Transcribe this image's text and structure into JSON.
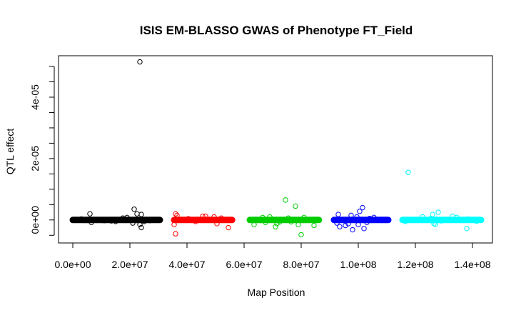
{
  "chart_data": {
    "type": "scatter",
    "title": "ISIS EM-BLASSO GWAS of Phenotype FT_Field",
    "xlabel": "Map Position",
    "ylabel": "QTL effect",
    "xlim": [
      -5000000,
      147000000
    ],
    "ylim": [
      -7.5e-06,
      5.35e-05
    ],
    "x_ticks": [
      0,
      20000000,
      40000000,
      60000000,
      80000000,
      100000000,
      120000000,
      140000000
    ],
    "x_tick_labels": [
      "0.0e+00",
      "2.0e+07",
      "4.0e+07",
      "6.0e+07",
      "8.0e+07",
      "1.0e+08",
      "1.2e+08",
      "1.4e+08"
    ],
    "y_ticks": [
      0,
      2e-05,
      4e-05
    ],
    "y_tick_labels": [
      "0e+00",
      "2e-05",
      "4e-05"
    ],
    "grid": false,
    "legend": "none",
    "bands": [
      {
        "name": "",
        "color": "#000000",
        "x_range": [
          0,
          30500000
        ]
      },
      {
        "name": "",
        "color": "#ff0000",
        "x_range": [
          35500000,
          55800000
        ]
      },
      {
        "name": "",
        "color": "#00cc00",
        "x_range": [
          62000000,
          86200000
        ]
      },
      {
        "name": "",
        "color": "#0000ff",
        "x_range": [
          91500000,
          110500000
        ]
      },
      {
        "name": "",
        "color": "#00ffff",
        "x_range": [
          115500000,
          143000000
        ]
      }
    ],
    "series": [
      {
        "name": "",
        "color": "#000000",
        "points": [
          [
            23500000,
            5.15e-05
          ],
          [
            6000000,
            2e-06
          ],
          [
            21500000,
            3.5e-06
          ],
          [
            22500000,
            2e-06
          ],
          [
            24000000,
            1.8e-06
          ],
          [
            19000000,
            8e-07
          ],
          [
            17500000,
            6e-07
          ],
          [
            13500000,
            -3e-07
          ],
          [
            23500000,
            -1.5e-06
          ],
          [
            24000000,
            -2.5e-06
          ],
          [
            21000000,
            -1e-06
          ],
          [
            6500000,
            -8e-07
          ],
          [
            15000000,
            -5e-07
          ],
          [
            25000000,
            -5e-07
          ],
          [
            27000000,
            -2e-07
          ],
          [
            11000000,
            -2e-07
          ],
          [
            3000000,
            3e-07
          ]
        ]
      },
      {
        "name": "",
        "color": "#ff0000",
        "points": [
          [
            36000000,
            2e-06
          ],
          [
            36500000,
            1.5e-06
          ],
          [
            45500000,
            1.2e-06
          ],
          [
            46500000,
            1.2e-06
          ],
          [
            49500000,
            1e-06
          ],
          [
            35500000,
            -1.5e-06
          ],
          [
            36000000,
            -4.5e-06
          ],
          [
            50500000,
            -1.2e-06
          ],
          [
            54500000,
            -2.5e-06
          ],
          [
            43000000,
            -5e-07
          ],
          [
            52000000,
            6e-07
          ],
          [
            40500000,
            4e-07
          ]
        ]
      },
      {
        "name": "",
        "color": "#00cc00",
        "points": [
          [
            74500000,
            6.5e-06
          ],
          [
            78000000,
            4.5e-06
          ],
          [
            66500000,
            8e-07
          ],
          [
            69000000,
            1e-06
          ],
          [
            81000000,
            8e-07
          ],
          [
            85000000,
            2e-07
          ],
          [
            75500000,
            6e-07
          ],
          [
            63500000,
            -1.5e-06
          ],
          [
            67500000,
            -8e-07
          ],
          [
            71500000,
            -1.2e-06
          ],
          [
            71000000,
            -2.2e-06
          ],
          [
            72500000,
            -6e-07
          ],
          [
            79000000,
            -1.5e-06
          ],
          [
            80000000,
            -4.8e-06
          ],
          [
            84500000,
            -1.8e-06
          ],
          [
            76500000,
            -6e-07
          ]
        ]
      },
      {
        "name": "",
        "color": "#0000ff",
        "points": [
          [
            101500000,
            4e-06
          ],
          [
            93000000,
            1.8e-06
          ],
          [
            97500000,
            1.5e-06
          ],
          [
            99500000,
            1e-06
          ],
          [
            100500000,
            2.8e-06
          ],
          [
            104000000,
            5e-07
          ],
          [
            105500000,
            8e-07
          ],
          [
            92500000,
            -1e-06
          ],
          [
            93500000,
            -2.2e-06
          ],
          [
            96500000,
            -1.2e-06
          ],
          [
            98000000,
            -3.2e-06
          ],
          [
            100000000,
            -1.5e-06
          ],
          [
            102000000,
            -2.8e-06
          ],
          [
            103000000,
            -8e-07
          ],
          [
            95500000,
            -1.8e-06
          ]
        ]
      },
      {
        "name": "",
        "color": "#00ffff",
        "points": [
          [
            117500000,
            1.55e-05
          ],
          [
            128000000,
            2.5e-06
          ],
          [
            126000000,
            1.8e-06
          ],
          [
            125500000,
            5e-07
          ],
          [
            133000000,
            1.2e-06
          ],
          [
            122500000,
            1e-06
          ],
          [
            134500000,
            8e-07
          ],
          [
            138500000,
            3e-07
          ],
          [
            116500000,
            -5e-07
          ],
          [
            126500000,
            -1.2e-06
          ],
          [
            127000000,
            -1.5e-06
          ],
          [
            138000000,
            -2.8e-06
          ],
          [
            129000000,
            -3e-07
          ],
          [
            141500000,
            -4e-07
          ]
        ]
      }
    ]
  }
}
